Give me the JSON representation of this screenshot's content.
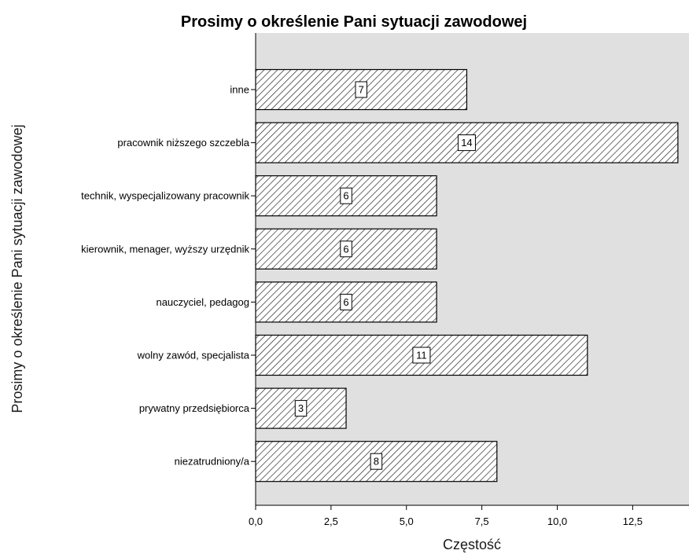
{
  "chart_data": {
    "type": "bar",
    "orientation": "horizontal",
    "title": "Prosimy o określenie Pani sytuacji zawodowej",
    "xlabel": "Częstość",
    "ylabel": "Prosimy o określenie Pani sytuacji zawodowej",
    "categories": [
      "inne",
      "pracownik niższego szczebla",
      "technik, wyspecjalizowany pracownik",
      "kierownik, menager, wyższy urzędnik",
      "nauczyciel, pedagog",
      "wolny zawód, specjalista",
      "prywatny przedsiębiorca",
      "niezatrudniony/a"
    ],
    "values": [
      7,
      14,
      6,
      6,
      6,
      11,
      3,
      8
    ],
    "xlim": [
      0,
      14.5
    ],
    "xticks": [
      0,
      2.5,
      5,
      7.5,
      10,
      12.5
    ],
    "xtick_labels": [
      "0,0",
      "2,5",
      "5,0",
      "7,5",
      "10,0",
      "12,5"
    ],
    "grid": false,
    "bar_pattern": "diagonal-hatch",
    "colors": {
      "plot_background": "#e0e0e0",
      "bar_fill": "#ffffff",
      "bar_hatch": "#1a1a1a",
      "bar_border": "#000000"
    }
  }
}
